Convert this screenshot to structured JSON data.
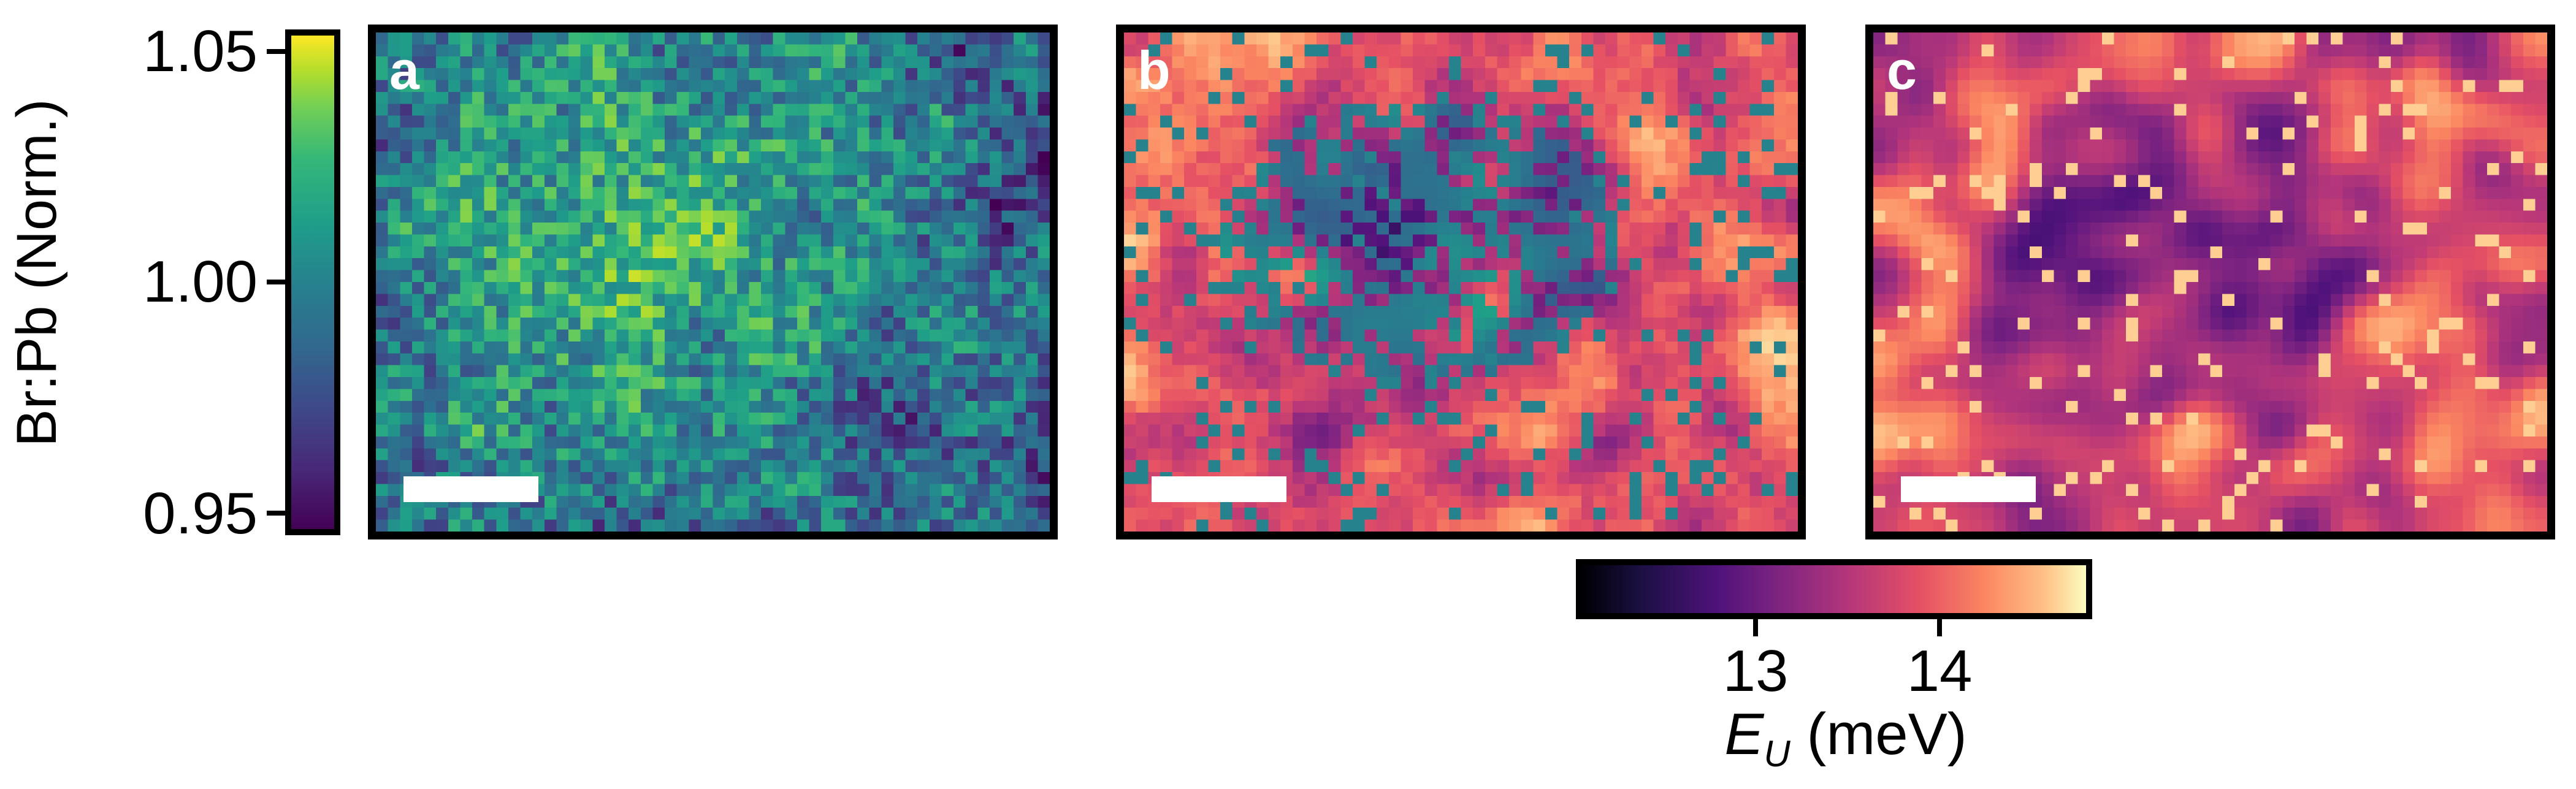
{
  "chart_data": [
    {
      "type": "heatmap",
      "panel_label": "a",
      "colormap": "viridis",
      "colorbar": {
        "label": "Br:Pb (Norm.)",
        "range": [
          0.945,
          1.055
        ],
        "ticks": [
          "1.05",
          "1.00",
          "0.95"
        ]
      },
      "scale_bar": true
    },
    {
      "type": "heatmap",
      "panel_label": "b",
      "colormap": "magma",
      "overlay_colormap": "viridis",
      "scale_bar": true
    },
    {
      "type": "heatmap",
      "panel_label": "c",
      "colormap": "magma",
      "scale_bar": true
    }
  ],
  "shared_colorbar": {
    "colormap": "magma",
    "label_symbol": "E",
    "label_subscript": "U",
    "label_unit": "(meV)",
    "range": [
      12.05,
      14.8
    ],
    "ticks": [
      "13",
      "14"
    ]
  },
  "colors": {
    "frame": "#000000",
    "scale_bar": "#ffffff",
    "panel_label": "#ffffff"
  }
}
